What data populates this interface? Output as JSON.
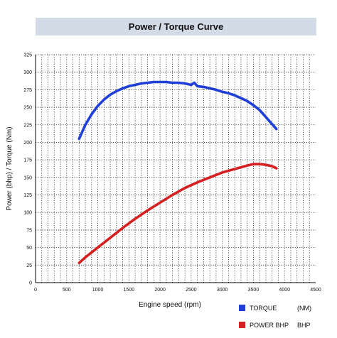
{
  "chart_data": {
    "type": "line",
    "title": "Power / Torque Curve",
    "xlabel": "Engine speed (rpm)",
    "ylabel": "Power (bhp) / Torque (Nm)",
    "xlim": [
      0,
      4500
    ],
    "ylim": [
      0,
      325
    ],
    "x_ticks": [
      0,
      500,
      1000,
      1500,
      2000,
      2500,
      3000,
      3500,
      4000,
      4500
    ],
    "y_ticks": [
      0,
      25,
      50,
      75,
      100,
      125,
      150,
      175,
      200,
      225,
      250,
      275,
      300,
      325
    ],
    "grid": true,
    "legend_placement": "bottom-right",
    "series": [
      {
        "name": "TORQUE",
        "unit": "(NM)",
        "color": "#1f3fd6",
        "x": [
          700,
          800,
          900,
          1000,
          1100,
          1200,
          1300,
          1400,
          1500,
          1600,
          1700,
          1800,
          1900,
          2000,
          2100,
          2200,
          2300,
          2400,
          2500,
          2550,
          2600,
          2700,
          2800,
          2900,
          3000,
          3100,
          3200,
          3300,
          3400,
          3500,
          3600,
          3700,
          3800,
          3870
        ],
        "values": [
          205,
          225,
          240,
          252,
          261,
          268,
          273,
          277,
          280,
          282,
          284,
          285,
          286,
          286,
          286,
          285,
          285,
          284,
          282,
          285,
          280,
          279,
          277,
          275,
          272,
          270,
          267,
          263,
          259,
          253,
          246,
          236,
          226,
          219
        ]
      },
      {
        "name": "POWER BHP",
        "unit": "BHP",
        "color": "#d42020",
        "x": [
          700,
          800,
          1000,
          1200,
          1400,
          1600,
          1800,
          2000,
          2200,
          2400,
          2600,
          2800,
          3000,
          3200,
          3400,
          3500,
          3600,
          3700,
          3800,
          3870
        ],
        "values": [
          28,
          36,
          50,
          64,
          78,
          91,
          103,
          114,
          125,
          135,
          143,
          150,
          157,
          162,
          167,
          169,
          169,
          168,
          166,
          163
        ]
      }
    ]
  }
}
